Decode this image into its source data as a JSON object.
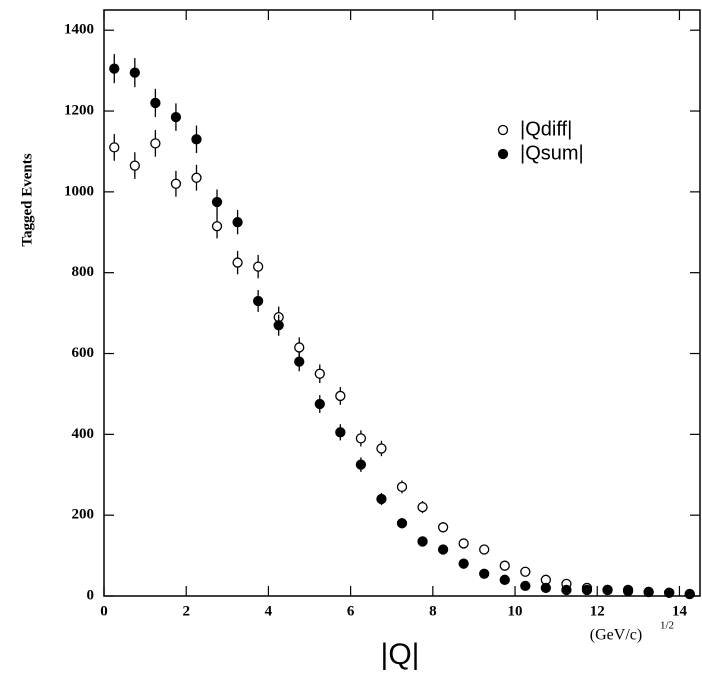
{
  "chart_data": {
    "type": "scatter",
    "y_label": "Tagged Events",
    "x_label": "|Q|",
    "x_unit": "(GeV/c)",
    "x_unit_exponent": "1/2",
    "x": [
      0.25,
      0.75,
      1.25,
      1.75,
      2.25,
      2.75,
      3.25,
      3.75,
      4.25,
      4.75,
      5.25,
      5.75,
      6.25,
      6.75,
      7.25,
      7.75,
      8.25,
      8.75,
      9.25,
      9.75,
      10.25,
      10.75,
      11.25,
      11.75,
      12.25,
      12.75,
      13.25,
      13.75,
      14.25
    ],
    "series": [
      {
        "name": "|Qdiff|",
        "color": "#000000",
        "marker": "open",
        "values": [
          1110,
          1065,
          1120,
          1020,
          1035,
          915,
          825,
          815,
          690,
          615,
          550,
          495,
          390,
          365,
          270,
          220,
          170,
          130,
          115,
          75,
          60,
          40,
          30,
          20,
          15,
          15,
          10,
          8,
          5
        ],
        "errors": [
          33,
          33,
          33,
          32,
          32,
          30,
          29,
          29,
          26,
          25,
          23,
          22,
          20,
          19,
          16,
          15,
          13,
          11,
          11,
          9,
          8,
          6,
          5,
          4,
          4,
          4,
          3,
          3,
          2
        ]
      },
      {
        "name": "|Qsum|",
        "color": "#000000",
        "marker": "filled",
        "values": [
          1305,
          1295,
          1220,
          1185,
          1130,
          975,
          925,
          730,
          670,
          580,
          475,
          405,
          325,
          240,
          180,
          135,
          115,
          80,
          55,
          40,
          25,
          20,
          15,
          15,
          15,
          12,
          10,
          8,
          5
        ],
        "errors": [
          36,
          36,
          35,
          34,
          34,
          31,
          30,
          27,
          26,
          24,
          22,
          20,
          18,
          15,
          13,
          12,
          11,
          9,
          7,
          6,
          5,
          4,
          4,
          4,
          4,
          3,
          3,
          3,
          2
        ]
      }
    ],
    "xlim": [
      0,
      14.5
    ],
    "ylim": [
      0,
      1450
    ],
    "xticks": [
      0,
      2,
      4,
      6,
      8,
      10,
      12,
      14
    ],
    "yticks": [
      0,
      200,
      400,
      600,
      800,
      1000,
      1200,
      1400
    ],
    "grid": false,
    "legend": "upper right"
  }
}
